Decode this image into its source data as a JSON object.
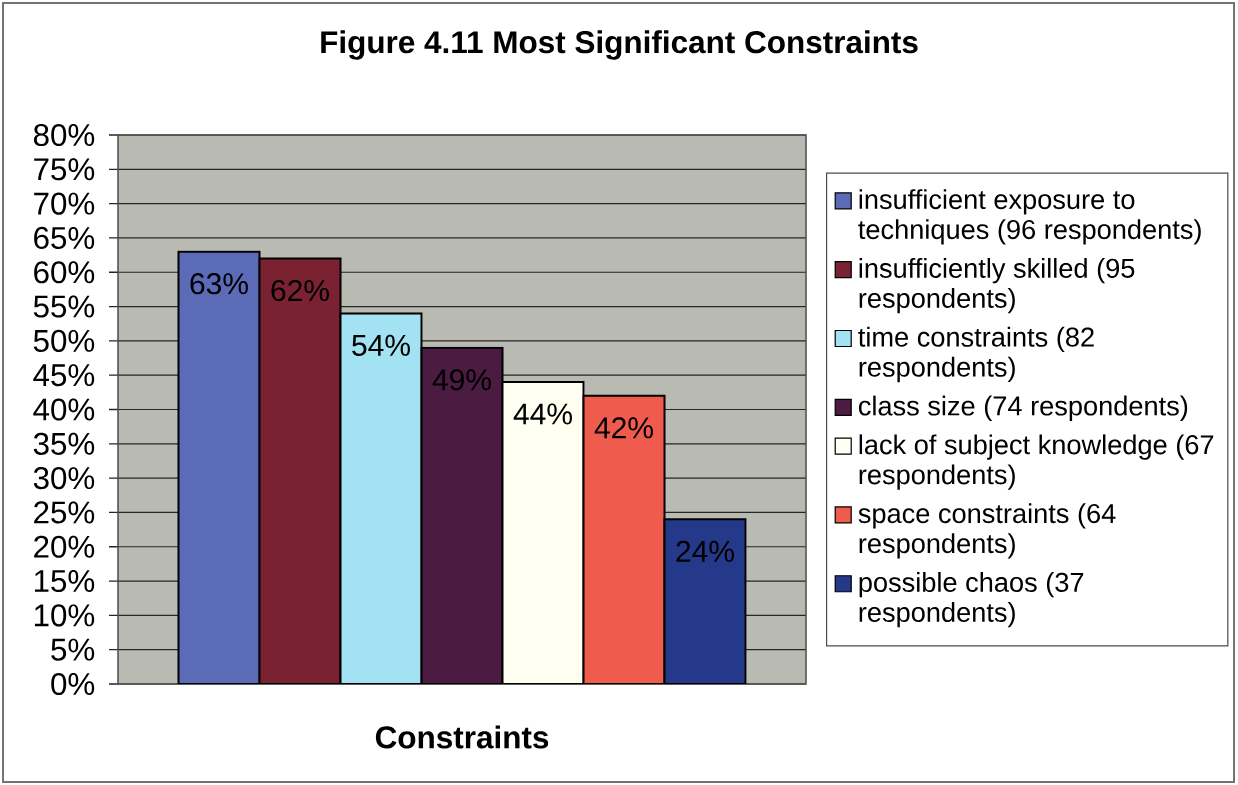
{
  "chart_data": {
    "type": "bar",
    "title": "Figure 4.11 Most Significant Constraints",
    "xlabel": "Constraints",
    "categories": [
      null
    ],
    "series": [
      {
        "name": "insufficient exposure to techniques (96 respondents)",
        "color": "#5b6bb8",
        "values": [
          63
        ],
        "value_labels": [
          "63%"
        ]
      },
      {
        "name": "insufficiently skilled (95 respondents)",
        "color": "#7b2232",
        "values": [
          62
        ],
        "value_labels": [
          "62%"
        ]
      },
      {
        "name": "time constraints (82 respondents)",
        "color": "#a3e2f2",
        "values": [
          54
        ],
        "value_labels": [
          "54%"
        ]
      },
      {
        "name": "class size (74 respondents)",
        "color": "#4b1b42",
        "values": [
          49
        ],
        "value_labels": [
          "49%"
        ]
      },
      {
        "name": "lack of subject knowledge (67 respondents)",
        "color": "#fffff2",
        "values": [
          44
        ],
        "value_labels": [
          "44%"
        ]
      },
      {
        "name": "space constraints (64 respondents)",
        "color": "#ef5b4d",
        "values": [
          42
        ],
        "value_labels": [
          "42%"
        ]
      },
      {
        "name": "possible chaos (37 respondents)",
        "color": "#25398a",
        "values": [
          24
        ],
        "value_labels": [
          "24%"
        ]
      }
    ],
    "ylim": [
      0,
      80
    ],
    "yticks": [
      {
        "value": 0,
        "label": "0%"
      },
      {
        "value": 5,
        "label": "5%"
      },
      {
        "value": 10,
        "label": "10%"
      },
      {
        "value": 15,
        "label": "15%"
      },
      {
        "value": 20,
        "label": "20%"
      },
      {
        "value": 25,
        "label": "25%"
      },
      {
        "value": 30,
        "label": "30%"
      },
      {
        "value": 35,
        "label": "35%"
      },
      {
        "value": 40,
        "label": "40%"
      },
      {
        "value": 45,
        "label": "45%"
      },
      {
        "value": 50,
        "label": "50%"
      },
      {
        "value": 55,
        "label": "55%"
      },
      {
        "value": 60,
        "label": "60%"
      },
      {
        "value": 65,
        "label": "65%"
      },
      {
        "value": 70,
        "label": "70%"
      },
      {
        "value": 75,
        "label": "75%"
      },
      {
        "value": 80,
        "label": "80%"
      }
    ],
    "grid": "y",
    "legend": "right"
  }
}
